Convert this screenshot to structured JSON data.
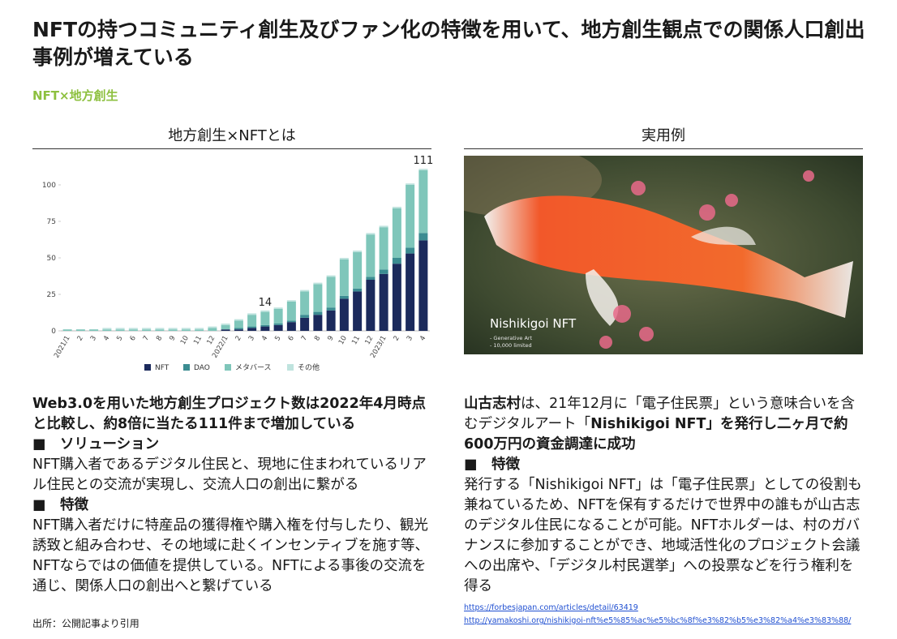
{
  "header": {
    "title": "NFTの持つコミュニティ創生及びファン化の特徴を用いて、地方創生観点での関係人口創出事例が増えている",
    "tag": "NFT×地方創生"
  },
  "left": {
    "heading": "地方創生×NFTとは",
    "summary": "Web3.0を用いた地方創生プロジェクト数は2022年4月時点と比較し、約8倍に当たる111件まで増加している",
    "sections": [
      {
        "heading": "■　ソリューション",
        "body": "NFT購入者であるデジタル住民と、現地に住まわれているリアル住民との交流が実現し、交流人口の創出に繋がる"
      },
      {
        "heading": "■　特徴",
        "body": "NFT購入者だけに特産品の獲得権や購入権を付与したり、観光誘致と組み合わせ、その地域に赴くインセンティブを施す等、NFTならではの価値を提供している。NFTによる事後の交流を通じ、関係人口の創出へと繋げている"
      }
    ],
    "source": "出所：公開記事より引用"
  },
  "chart_data": {
    "type": "stacked_bar",
    "categories": [
      "2021/1",
      "2",
      "3",
      "4",
      "5",
      "6",
      "7",
      "8",
      "9",
      "10",
      "11",
      "12",
      "2022/1",
      "2",
      "3",
      "4",
      "5",
      "6",
      "7",
      "8",
      "9",
      "10",
      "11",
      "12",
      "2023/1",
      "2",
      "3",
      "4"
    ],
    "series": [
      {
        "name": "NFT",
        "color": "#1b2a5c",
        "values": [
          0,
          0,
          0,
          0,
          0,
          0,
          0,
          0,
          0,
          0,
          0,
          0,
          1,
          1,
          2,
          3,
          4,
          6,
          9,
          11,
          14,
          22,
          27,
          35,
          39,
          46,
          53,
          62
        ]
      },
      {
        "name": "DAO",
        "color": "#3b8c91",
        "values": [
          0,
          0,
          0,
          0,
          0,
          0,
          0,
          0,
          0,
          0,
          0,
          0,
          0,
          1,
          1,
          1,
          1,
          1,
          2,
          2,
          2,
          2,
          2,
          2,
          3,
          4,
          4,
          5
        ]
      },
      {
        "name": "メタバース",
        "color": "#7fc6ba",
        "values": [
          1,
          1,
          1,
          1,
          1,
          1,
          1,
          1,
          1,
          1,
          1,
          2,
          3,
          5,
          8,
          9,
          10,
          13,
          16,
          19,
          21,
          25,
          25,
          29,
          29,
          34,
          43,
          43
        ]
      },
      {
        "name": "その他",
        "color": "#bfe3de",
        "values": [
          0,
          0,
          0,
          1,
          1,
          1,
          1,
          1,
          1,
          1,
          1,
          1,
          1,
          1,
          1,
          1,
          1,
          1,
          1,
          1,
          1,
          1,
          1,
          1,
          1,
          1,
          1,
          1
        ]
      }
    ],
    "total_labels": [
      null,
      null,
      null,
      null,
      null,
      null,
      null,
      null,
      null,
      null,
      null,
      null,
      null,
      null,
      null,
      14,
      null,
      null,
      null,
      null,
      null,
      null,
      null,
      null,
      null,
      null,
      null,
      111
    ],
    "ylim": [
      0,
      115
    ],
    "yticks": [
      0,
      25,
      50,
      75,
      100
    ]
  },
  "right": {
    "heading": "実用例",
    "image": {
      "title": "Nishikigoi NFT",
      "lines": [
        "- Generative Art",
        "- 10,000 limited"
      ]
    },
    "summary": [
      {
        "text": "山古志村",
        "bold": true
      },
      {
        "text": "は、21年12月に「電子住民票」という意味合いを含むデジタルアート「",
        "bold": false
      },
      {
        "text": "Nishikigoi NFT",
        "bold": true
      },
      {
        "text": "」を発行し二ヶ月で約600万円の資金調達に成功",
        "bold": true
      }
    ],
    "sections": [
      {
        "heading": "■　特徴",
        "body": "発行する「Nishikigoi NFT」は「電子住民票」としての役割も兼ねているため、NFTを保有するだけで世界中の誰もが山古志のデジタル住民になることが可能。NFTホルダーは、村のガバナンスに参加することができ、地域活性化のプロジェクト会議への出席や、「デジタル村民選挙」への投票などを行う権利を得る"
      }
    ],
    "links": [
      "https://forbesjapan.com/articles/detail/63419",
      "http://yamakoshi.org/nishikigoi-nft%e5%85%ac%e5%bc%8f%e3%82%b5%e3%82%a4%e3%83%88/"
    ]
  }
}
